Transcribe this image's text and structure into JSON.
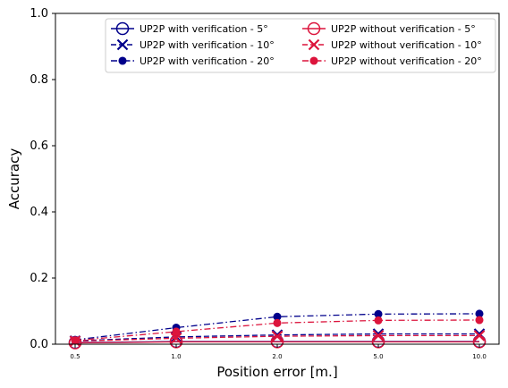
{
  "chart_data": {
    "type": "line",
    "categories": [
      "0.5",
      "1.0",
      "2.0",
      "5.0",
      "10.0"
    ],
    "xlabel": "Position error [m.]",
    "ylabel": "Accuracy",
    "ylim": [
      0,
      1
    ],
    "yticks": [
      "0.0",
      "0.2",
      "0.4",
      "0.6",
      "0.8",
      "1.0"
    ],
    "grid": false,
    "legend_position": "top-right",
    "legend_columns": 2,
    "series": [
      {
        "name": "UP2P with verification - 5°",
        "color": "#00008b",
        "linestyle": "solid",
        "marker": "open-circle",
        "values": [
          0.005,
          0.008,
          0.008,
          0.008,
          0.008
        ]
      },
      {
        "name": "UP2P with verification - 10°",
        "color": "#00008b",
        "linestyle": "dashed",
        "marker": "x",
        "values": [
          0.01,
          0.022,
          0.028,
          0.031,
          0.031
        ]
      },
      {
        "name": "UP2P with verification - 20°",
        "color": "#00008b",
        "linestyle": "dashdot",
        "marker": "filled-circle",
        "values": [
          0.013,
          0.05,
          0.083,
          0.091,
          0.092
        ]
      },
      {
        "name": "UP2P without verification - 5°",
        "color": "#dc143c",
        "linestyle": "solid",
        "marker": "open-circle",
        "values": [
          0.004,
          0.007,
          0.007,
          0.007,
          0.007
        ]
      },
      {
        "name": "UP2P without verification - 10°",
        "color": "#dc143c",
        "linestyle": "dashed",
        "marker": "x",
        "values": [
          0.009,
          0.018,
          0.024,
          0.026,
          0.026
        ]
      },
      {
        "name": "UP2P without verification - 20°",
        "color": "#dc143c",
        "linestyle": "dashdot",
        "marker": "filled-circle",
        "values": [
          0.011,
          0.038,
          0.064,
          0.072,
          0.073
        ]
      }
    ]
  }
}
